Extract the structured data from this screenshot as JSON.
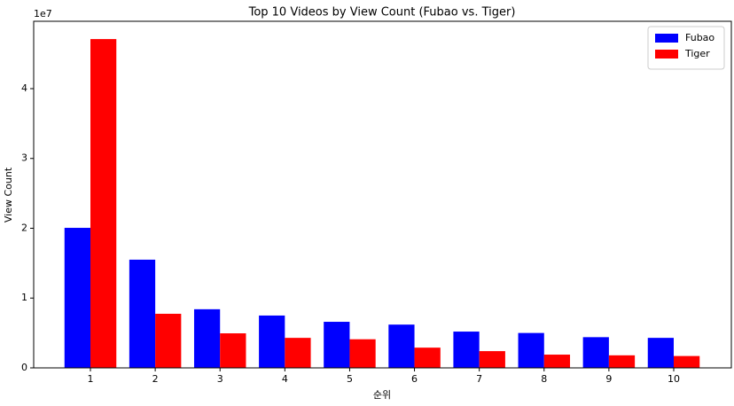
{
  "chart_data": {
    "type": "bar",
    "title": "Top 10 Videos by View Count (Fubao vs. Tiger)",
    "xlabel": "순위",
    "ylabel": "View Count",
    "y_offset_label": "1e7",
    "categories": [
      "1",
      "2",
      "3",
      "4",
      "5",
      "6",
      "7",
      "8",
      "9",
      "10"
    ],
    "series": [
      {
        "name": "Fubao",
        "color": "#0000ff",
        "values": [
          20060000,
          15500000,
          8400000,
          7500000,
          6600000,
          6200000,
          5200000,
          5000000,
          4400000,
          4300000
        ]
      },
      {
        "name": "Tiger",
        "color": "#ff0000",
        "values": [
          47100000,
          7750000,
          4950000,
          4300000,
          4100000,
          2900000,
          2400000,
          1900000,
          1800000,
          1700000
        ]
      }
    ],
    "ylim": [
      0,
      49650000
    ],
    "yticks": [
      0,
      {
        "value": 10000000,
        "label": "1"
      },
      {
        "value": 20000000,
        "label": "2"
      },
      {
        "value": 30000000,
        "label": "3"
      },
      {
        "value": 40000000,
        "label": "4"
      }
    ],
    "grid": false,
    "legend": "upper right"
  }
}
